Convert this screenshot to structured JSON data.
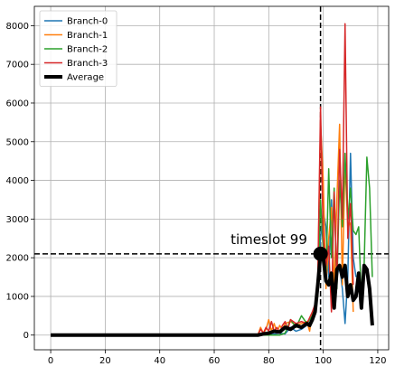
{
  "chart_data": {
    "type": "line",
    "title": "",
    "xlabel": "",
    "ylabel": "",
    "xlim": [
      -6,
      124
    ],
    "ylim": [
      -380,
      8500
    ],
    "xticks": [
      0,
      20,
      40,
      60,
      80,
      100,
      120
    ],
    "yticks": [
      0,
      1000,
      2000,
      3000,
      4000,
      5000,
      6000,
      7000,
      8000
    ],
    "grid": true,
    "legend_position": "top-left",
    "series": [
      {
        "name": "Branch-0",
        "color": "#1f77b4",
        "linewidth": 1.5,
        "points": [
          [
            0,
            0
          ],
          [
            76,
            0
          ],
          [
            80,
            0
          ],
          [
            84,
            50
          ],
          [
            86,
            30
          ],
          [
            88,
            200
          ],
          [
            90,
            100
          ],
          [
            92,
            150
          ],
          [
            94,
            250
          ],
          [
            96,
            400
          ],
          [
            97,
            600
          ],
          [
            98,
            1500
          ],
          [
            99,
            2500
          ],
          [
            100,
            3200
          ],
          [
            101,
            2800
          ],
          [
            102,
            1500
          ],
          [
            103,
            3500
          ],
          [
            104,
            1000
          ],
          [
            105,
            1500
          ],
          [
            106,
            1800
          ],
          [
            107,
            1200
          ],
          [
            108,
            300
          ],
          [
            109,
            1500
          ],
          [
            110,
            4700
          ],
          [
            111,
            2000
          ],
          [
            112,
            1500
          ]
        ]
      },
      {
        "name": "Branch-1",
        "color": "#ff7f0e",
        "linewidth": 1.5,
        "points": [
          [
            0,
            0
          ],
          [
            76,
            0
          ],
          [
            77,
            200
          ],
          [
            78,
            50
          ],
          [
            79,
            150
          ],
          [
            80,
            400
          ],
          [
            81,
            100
          ],
          [
            82,
            300
          ],
          [
            83,
            50
          ],
          [
            84,
            250
          ],
          [
            85,
            150
          ],
          [
            86,
            300
          ],
          [
            88,
            350
          ],
          [
            90,
            250
          ],
          [
            92,
            300
          ],
          [
            94,
            350
          ],
          [
            95,
            100
          ],
          [
            96,
            600
          ],
          [
            97,
            700
          ],
          [
            98,
            1400
          ],
          [
            99,
            5500
          ],
          [
            100,
            4000
          ],
          [
            101,
            1200
          ],
          [
            102,
            2500
          ],
          [
            103,
            3300
          ],
          [
            104,
            1200
          ],
          [
            105,
            3500
          ],
          [
            106,
            5450
          ],
          [
            107,
            1300
          ],
          [
            108,
            4500
          ],
          [
            109,
            2800
          ],
          [
            110,
            2900
          ],
          [
            111,
            600
          ]
        ]
      },
      {
        "name": "Branch-2",
        "color": "#2ca02c",
        "linewidth": 1.5,
        "points": [
          [
            0,
            0
          ],
          [
            84,
            0
          ],
          [
            86,
            50
          ],
          [
            88,
            400
          ],
          [
            90,
            200
          ],
          [
            92,
            500
          ],
          [
            94,
            300
          ],
          [
            96,
            500
          ],
          [
            98,
            1000
          ],
          [
            99,
            3500
          ],
          [
            100,
            2200
          ],
          [
            101,
            1500
          ],
          [
            102,
            4300
          ],
          [
            103,
            2000
          ],
          [
            104,
            3800
          ],
          [
            105,
            1200
          ],
          [
            106,
            4000
          ],
          [
            107,
            2800
          ],
          [
            108,
            4700
          ],
          [
            109,
            3000
          ],
          [
            110,
            3800
          ],
          [
            111,
            2700
          ],
          [
            112,
            2600
          ],
          [
            113,
            2800
          ],
          [
            114,
            900
          ],
          [
            115,
            1800
          ],
          [
            116,
            4600
          ],
          [
            117,
            3800
          ],
          [
            118,
            1500
          ]
        ]
      },
      {
        "name": "Branch-3",
        "color": "#d62728",
        "linewidth": 1.5,
        "points": [
          [
            0,
            0
          ],
          [
            76,
            0
          ],
          [
            77,
            150
          ],
          [
            78,
            50
          ],
          [
            79,
            200
          ],
          [
            80,
            100
          ],
          [
            81,
            350
          ],
          [
            82,
            100
          ],
          [
            83,
            200
          ],
          [
            84,
            50
          ],
          [
            85,
            250
          ],
          [
            86,
            350
          ],
          [
            87,
            150
          ],
          [
            88,
            400
          ],
          [
            90,
            300
          ],
          [
            92,
            350
          ],
          [
            94,
            300
          ],
          [
            96,
            600
          ],
          [
            97,
            800
          ],
          [
            98,
            1500
          ],
          [
            99,
            5900
          ],
          [
            100,
            2500
          ],
          [
            101,
            1800
          ],
          [
            102,
            2300
          ],
          [
            103,
            600
          ],
          [
            104,
            3700
          ],
          [
            105,
            1400
          ],
          [
            106,
            4800
          ],
          [
            107,
            3000
          ],
          [
            108,
            8050
          ],
          [
            109,
            2500
          ],
          [
            110,
            3400
          ],
          [
            111,
            1300
          ]
        ]
      },
      {
        "name": "Average",
        "color": "#000000",
        "linewidth": 4,
        "points": [
          [
            0,
            0
          ],
          [
            76,
            0
          ],
          [
            78,
            30
          ],
          [
            80,
            50
          ],
          [
            82,
            100
          ],
          [
            84,
            80
          ],
          [
            86,
            200
          ],
          [
            88,
            150
          ],
          [
            90,
            250
          ],
          [
            92,
            200
          ],
          [
            94,
            300
          ],
          [
            95,
            250
          ],
          [
            96,
            400
          ],
          [
            97,
            600
          ],
          [
            98,
            1300
          ],
          [
            99,
            2100
          ],
          [
            100,
            2000
          ],
          [
            101,
            1400
          ],
          [
            102,
            1300
          ],
          [
            103,
            1600
          ],
          [
            104,
            700
          ],
          [
            105,
            1700
          ],
          [
            106,
            1800
          ],
          [
            107,
            1500
          ],
          [
            108,
            1800
          ],
          [
            109,
            1000
          ],
          [
            110,
            1300
          ],
          [
            111,
            900
          ],
          [
            112,
            1000
          ],
          [
            113,
            1600
          ],
          [
            114,
            700
          ],
          [
            115,
            1800
          ],
          [
            116,
            1700
          ],
          [
            117,
            1200
          ],
          [
            118,
            250
          ]
        ]
      }
    ],
    "reference_lines": {
      "vertical_x": 99,
      "horizontal_y": 2100,
      "style": "dashed",
      "color": "#000000"
    },
    "highlight_point": {
      "x": 99,
      "y": 2100
    },
    "annotations": [
      {
        "text": "timeslot 99",
        "x": 66,
        "y": 2350
      }
    ]
  }
}
